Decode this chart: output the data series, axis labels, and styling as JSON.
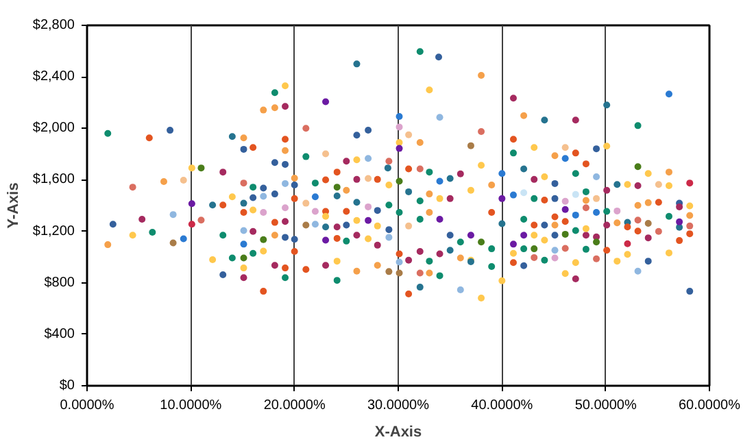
{
  "chart_data": {
    "type": "scatter",
    "xlabel": "X-Axis",
    "ylabel": "Y-Axis",
    "xlim": [
      0,
      60
    ],
    "ylim": [
      0,
      2800
    ],
    "xticks": [
      {
        "value": 0,
        "label": "0.0000%"
      },
      {
        "value": 10,
        "label": "10.0000%"
      },
      {
        "value": 20,
        "label": "20.0000%"
      },
      {
        "value": 30,
        "label": "30.0000%"
      },
      {
        "value": 40,
        "label": "40.0000%"
      },
      {
        "value": 50,
        "label": "50.0000%"
      },
      {
        "value": 60,
        "label": "60.0000%"
      }
    ],
    "yticks": [
      {
        "value": 0,
        "label": "$0"
      },
      {
        "value": 400,
        "label": "$400"
      },
      {
        "value": 800,
        "label": "$800"
      },
      {
        "value": 1200,
        "label": "$1,200"
      },
      {
        "value": 1600,
        "label": "$1,600"
      },
      {
        "value": 2000,
        "label": "$2,000"
      },
      {
        "value": 2400,
        "label": "$2,400"
      },
      {
        "value": 2800,
        "label": "$2,800"
      }
    ],
    "grid": "x",
    "marker": "circle",
    "x": [
      2.0,
      6.0,
      8.0,
      4.4,
      7.4,
      9.3,
      8.3,
      2.5,
      5.3,
      4.4,
      6.3,
      2.0,
      8.3,
      9.3,
      10.1,
      11.0,
      10.1,
      10.1,
      11.0,
      13.1,
      14.0,
      15.1,
      15.1,
      16.0,
      18.1,
      19.1,
      19.1,
      18.1,
      19.1,
      17.0,
      18.1,
      19.1,
      19.1,
      12.1,
      13.1,
      14.0,
      13.1,
      12.1,
      14.0,
      13.1,
      15.1,
      15.1,
      15.1,
      17.0,
      18.1,
      19.1,
      19.1,
      15.1,
      16.0,
      17.0,
      19.1,
      15.1,
      16.0,
      17.0,
      18.1,
      15.1,
      16.0,
      17.0,
      19.1,
      20.0,
      20.0,
      20.0,
      15.1,
      16.0,
      17.0,
      18.1,
      19.1,
      18.1,
      19.1,
      15.1,
      16.0,
      17.0,
      20.0,
      20.0,
      26.0,
      32.1,
      33.9,
      33.0,
      38.0,
      34.0,
      23.0,
      21.1,
      26.0,
      27.1,
      30.1,
      30.1,
      30.1,
      30.1,
      31.0,
      32.1,
      38.0,
      37.0,
      41.1,
      41.1,
      41.1,
      21.1,
      23.0,
      25.0,
      26.0,
      27.1,
      29.1,
      29.0,
      24.1,
      22.0,
      23.0,
      24.1,
      25.0,
      26.0,
      27.1,
      28.0,
      29.1,
      21.1,
      22.0,
      23.0,
      24.1,
      25.0,
      26.0,
      27.1,
      28.0,
      29.1,
      22.0,
      23.0,
      21.1,
      22.0,
      23.0,
      24.1,
      25.0,
      26.0,
      27.1,
      28.0,
      29.1,
      23.0,
      24.1,
      25.0,
      26.0,
      27.1,
      28.0,
      29.1,
      21.1,
      23.0,
      24.1,
      24.1,
      26.0,
      28.0,
      29.1,
      30.1,
      30.1,
      31.0,
      32.1,
      32.1,
      33.0,
      34.0,
      36.0,
      38.0,
      39.0,
      37.0,
      34.0,
      33.0,
      36.0,
      37.0,
      30.1,
      31.0,
      32.1,
      30.1,
      31.0,
      32.1,
      33.0,
      34.0,
      35.0,
      36.0,
      37.0,
      38.0,
      39.0,
      39.0,
      40.0,
      40.0,
      40.0,
      35.0,
      33.0,
      34.0,
      32.1,
      31.0,
      30.1,
      31.0,
      32.1,
      33.0,
      34.0,
      35.0,
      36.0,
      37.0,
      38.0,
      39.0,
      35.0,
      40.0,
      42.1,
      44.1,
      47.1,
      50.1,
      56.1,
      53.1,
      43.1,
      45.1,
      46.1,
      46.1,
      47.1,
      48.1,
      49.1,
      50.1,
      53.1,
      54.1,
      56.1,
      47.1,
      42.1,
      44.1,
      43.1,
      45.1,
      49.1,
      51.1,
      52.1,
      53.1,
      55.1,
      56.1,
      58.1,
      50.1,
      48.1,
      47.1,
      42.1,
      41.1,
      43.1,
      44.1,
      45.1,
      46.1,
      48.1,
      49.1,
      49.1,
      50.1,
      51.1,
      53.1,
      54.1,
      55.1,
      57.1,
      57.1,
      58.1,
      58.1,
      56.1,
      54.1,
      52.1,
      53.1,
      51.1,
      52.1,
      53.1,
      55.1,
      57.1,
      58.1,
      57.1,
      58.1,
      57.1,
      54.1,
      52.1,
      50.1,
      50.1,
      51.1,
      52.1,
      54.1,
      53.1,
      56.1,
      58.1,
      47.1,
      46.1,
      47.1,
      44.1,
      45.1,
      46.1,
      48.1,
      49.1,
      42.1,
      41.1,
      43.1,
      45.1,
      44.1,
      45.1,
      46.1,
      47.1,
      48.1,
      49.1,
      49.1,
      48.1,
      46.1,
      47.1,
      48.1,
      46.1,
      45.1,
      45.1,
      44.1,
      43.1,
      42.1,
      42.1,
      43.1,
      43.1,
      42.1,
      41.1,
      41.1
    ],
    "values": [
      1960,
      1926,
      1985,
      1543,
      1586,
      1597,
      1330,
      1255,
      1294,
      1170,
      1192,
      1096,
      1110,
      1142,
      1692,
      1692,
      1415,
      1255,
      1287,
      1660,
      1936,
      1926,
      1837,
      1851,
      1734,
      1720,
      2330,
      2277,
      2171,
      2142,
      2160,
      1915,
      1827,
      1404,
      1404,
      1468,
      1170,
      979,
      993,
      862,
      993,
      915,
      840,
      734,
      936,
      840,
      915,
      1575,
      1543,
      1536,
      1571,
      1418,
      1461,
      1472,
      1490,
      1347,
      1365,
      1347,
      1383,
      1613,
      1560,
      1454,
      1206,
      1199,
      1135,
      1170,
      1153,
      1269,
      1276,
      1100,
      1029,
      1046,
      1138,
      1043,
      2500,
      2596,
      2554,
      2298,
      2411,
      2085,
      2206,
      2000,
      1947,
      1986,
      2092,
      2010,
      1890,
      1844,
      1950,
      1890,
      1975,
      1865,
      2234,
      1915,
      1808,
      1780,
      1802,
      1745,
      1755,
      1766,
      1745,
      1692,
      1660,
      1575,
      1600,
      1543,
      1518,
      1603,
      1610,
      1603,
      1560,
      1418,
      1468,
      1355,
      1475,
      1355,
      1425,
      1390,
      1362,
      1404,
      1355,
      1316,
      1248,
      1255,
      1234,
      1234,
      1248,
      1284,
      1284,
      1241,
      1213,
      1131,
      1145,
      1124,
      1170,
      1142,
      1092,
      1153,
      904,
      936,
      819,
      968,
      890,
      936,
      887,
      876,
      961,
      713,
      766,
      876,
      876,
      855,
      745,
      681,
      926,
      975,
      1025,
      968,
      993,
      964,
      1025,
      975,
      1043,
      1347,
      1241,
      1294,
      1347,
      1294,
      1454,
      1646,
      1518,
      1713,
      1560,
      1347,
      1649,
      1454,
      1259,
      1610,
      1490,
      1454,
      1436,
      1507,
      1589,
      1685,
      1685,
      1660,
      1589,
      1170,
      1117,
      1170,
      1117,
      1064,
      1053,
      816,
      2099,
      2064,
      2064,
      2181,
      2266,
      2021,
      1851,
      1787,
      1851,
      1766,
      1808,
      1724,
      1841,
      1862,
      1702,
      1649,
      1660,
      1649,
      1685,
      1624,
      1603,
      1571,
      1624,
      1564,
      1564,
      1554,
      1564,
      1554,
      1575,
      1518,
      1507,
      1486,
      1500,
      1482,
      1454,
      1443,
      1454,
      1433,
      1440,
      1454,
      1347,
      1355,
      1358,
      1401,
      1422,
      1425,
      1418,
      1390,
      1397,
      1323,
      1316,
      1262,
      1269,
      1287,
      1266,
      1234,
      1202,
      1199,
      1231,
      1241,
      1273,
      1181,
      1128,
      1149,
      1103,
      1248,
      1053,
      968,
      1021,
      968,
      890,
      1032,
      734,
      830,
      872,
      957,
      975,
      993,
      1067,
      1060,
      986,
      933,
      957,
      996,
      1053,
      1131,
      1170,
      1177,
      1206,
      1170,
      1156,
      1117,
      1220,
      1276,
      1326,
      1383,
      1369,
      1312,
      1248,
      1248,
      1170,
      1170,
      1294,
      1248,
      1064,
      1064,
      1029,
      1100
    ],
    "colors": [
      "#0e8c6e",
      "#e35420",
      "#34609c",
      "#da6e60",
      "#f5a04a",
      "#f5c08e",
      "#8fb7e0",
      "#34609c",
      "#a52a5f",
      "#ffc84d",
      "#0e8c6e",
      "#f5a04a",
      "#a97c48",
      "#2a7ad2",
      "#ffc84d",
      "#4a7d1a",
      "#6b1aa3",
      "#cc2a48",
      "#da6e60",
      "#a52a5f",
      "#25738f",
      "#f5a04a",
      "#34609c",
      "#e35420",
      "#34609c",
      "#34609c",
      "#ffc84d",
      "#0e8c6e",
      "#a52a5f",
      "#f5a04a",
      "#f5a04a",
      "#e35420",
      "#f5a04a",
      "#25738f",
      "#e35420",
      "#ffc84d",
      "#0e8c6e",
      "#ffc84d",
      "#0e8c6e",
      "#34609c",
      "#4a7d1a",
      "#ffc84d",
      "#a52a5f",
      "#e35420",
      "#a52a5f",
      "#0e8c6e",
      "#e35420",
      "#da6e60",
      "#0e8c6e",
      "#34609c",
      "#8fb7e0",
      "#25738f",
      "#34609c",
      "#8fb7e0",
      "#34609c",
      "#e35420",
      "#ffc84d",
      "#dba3cc",
      "#dba3cc",
      "#f5a04a",
      "#34609c",
      "#e35420",
      "#8fb7e0",
      "#a52a5f",
      "#4a7d1a",
      "#f5a04a",
      "#34609c",
      "#e35420",
      "#a52a5f",
      "#2a7ad2",
      "#0e8c6e",
      "#ffc84d",
      "#34609c",
      "#e35420",
      "#25738f",
      "#0e8c6e",
      "#34609c",
      "#ffc84d",
      "#f5a04a",
      "#8fb7e0",
      "#6b1aa3",
      "#da6e60",
      "#34609c",
      "#34609c",
      "#2a7ad2",
      "#dba3cc",
      "#ffc84d",
      "#6b1aa3",
      "#f5c08e",
      "#f5a04a",
      "#da6e60",
      "#a97c48",
      "#a52a5f",
      "#e35420",
      "#0e8c6e",
      "#0e8c6e",
      "#f5c08e",
      "#a52a5f",
      "#ffc84d",
      "#8fb7e0",
      "#da6e60",
      "#25738f",
      "#e35420",
      "#0e8c6e",
      "#e35420",
      "#4a7d1a",
      "#f5a04a",
      "#a52a5f",
      "#f5c08e",
      "#e35420",
      "#ffc84d",
      "#f5c08e",
      "#2a7ad2",
      "#e35420",
      "#25738f",
      "#e35420",
      "#25738f",
      "#dba3cc",
      "#34609c",
      "#0e8c6e",
      "#dba3cc",
      "#ffc84d",
      "#a97c48",
      "#8fb7e0",
      "#25738f",
      "#a52a5f",
      "#34609c",
      "#ffc84d",
      "#6b1aa3",
      "#ffc84d",
      "#34609c",
      "#6b1aa3",
      "#e35420",
      "#0e8c6e",
      "#a52a5f",
      "#ffc84d",
      "#a52a5f",
      "#8fb7e0",
      "#e35420",
      "#a52a5f",
      "#0e8c6e",
      "#ffc84d",
      "#f5a04a",
      "#f5a04a",
      "#a97c48",
      "#a97c48",
      "#8fb7e0",
      "#e35420",
      "#25738f",
      "#da6e60",
      "#f5a04a",
      "#0e8c6e",
      "#8fb7e0",
      "#ffc84d",
      "#0e8c6e",
      "#ffc84d",
      "#a52a5f",
      "#0e8c6e",
      "#f5a04a",
      "#25738f",
      "#e35420",
      "#a52a5f",
      "#a52a5f",
      "#0e8c6e",
      "#f5c08e",
      "#0e8c6e",
      "#f5a04a",
      "#6b1aa3",
      "#a52a5f",
      "#a52a5f",
      "#ffc84d",
      "#ffc84d",
      "#f5a04a",
      "#e35420",
      "#2a7ad2",
      "#6b1aa3",
      "#25738f",
      "#25738f",
      "#f5a04a",
      "#ffc84d",
      "#0e8c6e",
      "#25738f",
      "#4a7d1a",
      "#e35420",
      "#da6e60",
      "#0e8c6e",
      "#2a7ad2",
      "#34609c",
      "#0e8c6e",
      "#6b1aa3",
      "#4a7d1a",
      "#0e8c6e",
      "#25738f",
      "#ffc84d",
      "#f5a04a",
      "#25738f",
      "#a52a5f",
      "#25738f",
      "#2a7ad2",
      "#0e8c6e",
      "#ffc84d",
      "#f5a04a",
      "#f5c08e",
      "#2a7ad2",
      "#e35420",
      "#e35420",
      "#34609c",
      "#ffc84d",
      "#4a7d1a",
      "#ffc84d",
      "#f5a04a",
      "#0e8c6e",
      "#25738f",
      "#ffc84d",
      "#a52a5f",
      "#34609c",
      "#8fb7e0",
      "#25738f",
      "#ffc84d",
      "#a52a5f",
      "#f5c08e",
      "#ffc84d",
      "#cc2a48",
      "#a52a5f",
      "#0e8c6e",
      "#c9e4f5",
      "#c9e4f5",
      "#2a7ad2",
      "#0e8c6e",
      "#e35420",
      "#34609c",
      "#dba3cc",
      "#f5a04a",
      "#f5c08e",
      "#2a7ad2",
      "#0e8c6e",
      "#dba3cc",
      "#f5a04a",
      "#f5a04a",
      "#e35420",
      "#34609c",
      "#a52a5f",
      "#ffc84d",
      "#f5a04a",
      "#0e8c6e",
      "#a97c48",
      "#25738f",
      "#da6e60",
      "#f5a04a",
      "#e35420",
      "#e35420",
      "#da6e60",
      "#25738f",
      "#da6e60",
      "#6b1aa3",
      "#e35420",
      "#e35420",
      "#a52a5f",
      "#cc2a48",
      "#a52a5f",
      "#e35420",
      "#ffc84d",
      "#ffc84d",
      "#34609c",
      "#8fb7e0",
      "#ffc84d",
      "#34609c",
      "#a52a5f",
      "#ffc84d",
      "#ffc84d",
      "#0e8c6e",
      "#dba3cc",
      "#da6e60",
      "#0e8c6e",
      "#da6e60",
      "#34609c",
      "#e35420",
      "#da6e60",
      "#8fb7e0",
      "#ffc84d",
      "#34609c",
      "#4a7d1a",
      "#0e8c6e",
      "#a52a5f",
      "#a52a5f",
      "#4a7d1a",
      "#ffc84d",
      "#e35420",
      "#2a7ad2",
      "#da6e60",
      "#6b1aa3",
      "#e35420",
      "#f5a04a",
      "#34609c",
      "#ffc84d",
      "#6b1aa3",
      "#0e8c6e",
      "#e35420",
      "#4a7d1a",
      "#0e8c6e",
      "#ffc84d",
      "#6b1aa3"
    ]
  }
}
